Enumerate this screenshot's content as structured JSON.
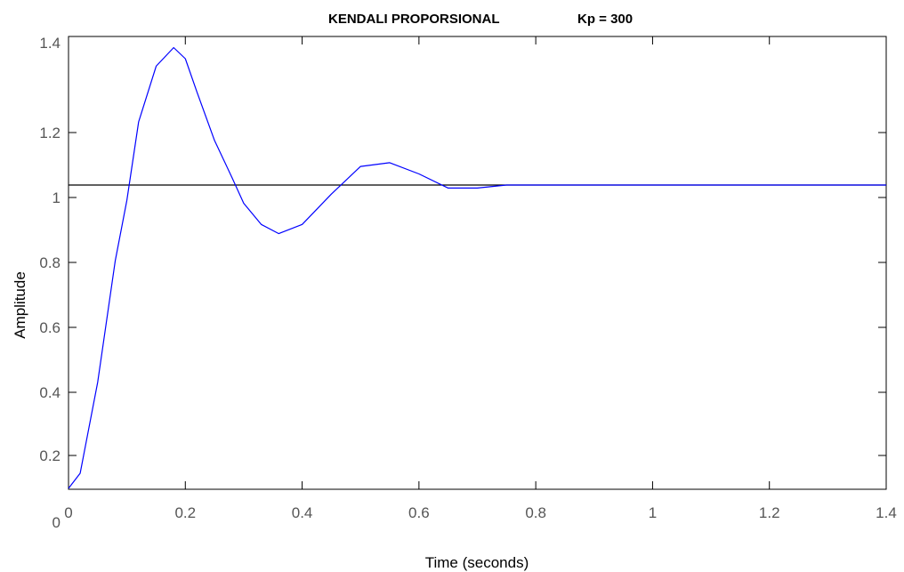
{
  "chart_data": {
    "type": "line",
    "title": "KENDALI PROPORSIONAL",
    "title_suffix": "Kp = 300",
    "xlabel": "Time (seconds)",
    "ylabel": "Amplitude",
    "xlim": [
      0,
      1.4
    ],
    "ylim": [
      0,
      1.4
    ],
    "xticks": [
      "0",
      "0.2",
      "0.4",
      "0.6",
      "0.8",
      "1",
      "1.2",
      "1.4"
    ],
    "yticks": [
      "0",
      "0.2",
      "0.4",
      "0.6",
      "0.8",
      "1",
      "1.2",
      "1.4"
    ],
    "grid": false,
    "line_color": "#0000ff",
    "reference_color": "#000000",
    "reference_level": 1.0,
    "series": [
      {
        "x": [
          0,
          0.02,
          0.05,
          0.08,
          0.1,
          0.12,
          0.15,
          0.18,
          0.2,
          0.22,
          0.25,
          0.28,
          0.3,
          0.33,
          0.36,
          0.4,
          0.45,
          0.5,
          0.55,
          0.6,
          0.65,
          0.7,
          0.75,
          0.8,
          0.85,
          0.9,
          0.95,
          1.0,
          1.1,
          1.2,
          1.3,
          1.4
        ],
        "y": [
          0,
          0.05,
          0.35,
          0.75,
          0.95,
          1.17,
          1.32,
          1.37,
          1.34,
          1.25,
          1.12,
          1.02,
          0.94,
          0.87,
          0.84,
          0.87,
          0.97,
          1.05,
          1.06,
          1.03,
          0.99,
          0.99,
          1.0,
          1.0,
          1.0,
          1.0,
          1.0,
          1.0,
          1.0,
          1.0,
          1.0,
          1.0
        ]
      }
    ]
  }
}
